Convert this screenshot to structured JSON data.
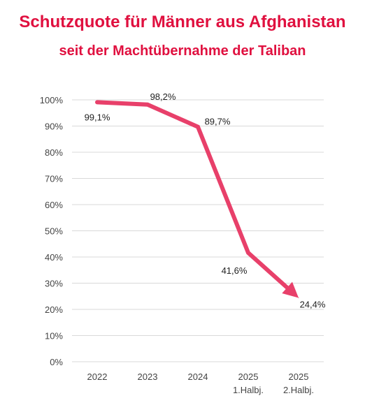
{
  "chart_data": {
    "type": "line",
    "title": "Schutzquote für Männer aus Afghanistan",
    "subtitle": "seit der Machtübernahme der Taliban",
    "categories": [
      [
        "2022"
      ],
      [
        "2023"
      ],
      [
        "2024"
      ],
      [
        "2025",
        "1.Halbj."
      ],
      [
        "2025",
        "2.Halbj."
      ]
    ],
    "series": [
      {
        "values": [
          99.1,
          98.2,
          89.7,
          41.6,
          24.4
        ],
        "labels": [
          "99,1%",
          "98,2%",
          "89,7%",
          "41,6%",
          "24,4%"
        ],
        "color": "#e8406a"
      }
    ],
    "ylim": [
      0,
      100
    ],
    "yticks": [
      0,
      10,
      20,
      30,
      40,
      50,
      60,
      70,
      80,
      90,
      100
    ],
    "ytick_labels": [
      "0%",
      "10%",
      "20%",
      "30%",
      "40%",
      "50%",
      "60%",
      "70%",
      "80%",
      "90%",
      "100%"
    ],
    "grid": true,
    "last_point_arrow": true
  }
}
